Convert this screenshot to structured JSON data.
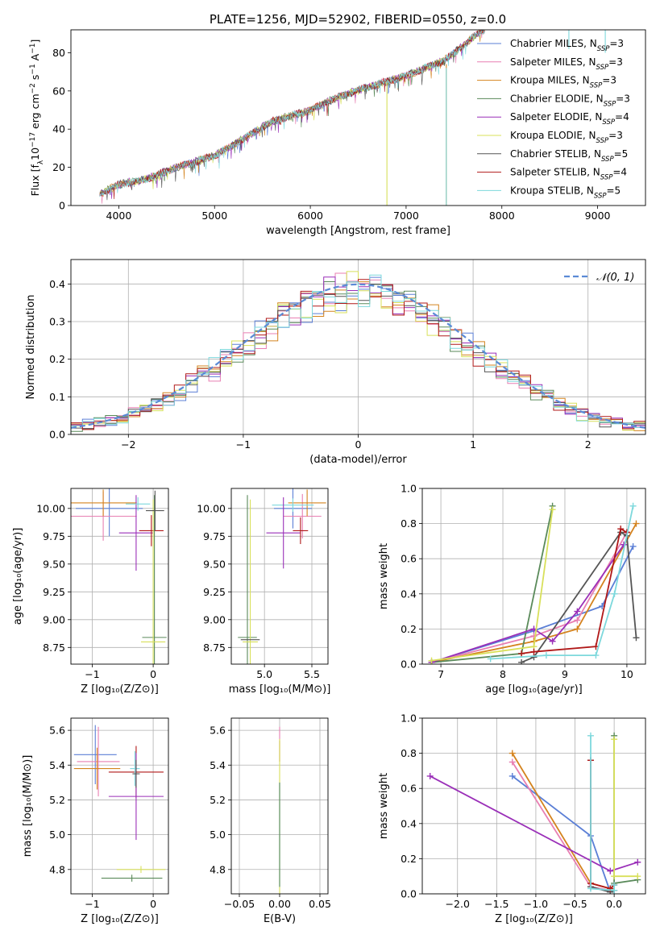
{
  "figure": {
    "suptitle": "PLATE=1256, MJD=52902, FIBERID=0550, z=0.0",
    "series_names": [
      "Chabrier MILES",
      "Salpeter MILES",
      "Kroupa MILES",
      "Chabrier ELODIE",
      "Salpeter ELODIE",
      "Kroupa ELODIE",
      "Chabrier STELIB",
      "Salpeter STELIB",
      "Kroupa STELIB"
    ],
    "series_nssp": [
      3,
      3,
      3,
      3,
      4,
      3,
      5,
      4,
      5
    ],
    "nssp_label": "N",
    "nssp_sub": "SSP",
    "series_colors": [
      "#5b7fd6",
      "#e87fb2",
      "#d4831e",
      "#5a8a5a",
      "#9a2fb8",
      "#d8e05a",
      "#555555",
      "#b01818",
      "#7dd8dc"
    ]
  },
  "chart_data": [
    {
      "id": "spectrum",
      "type": "line",
      "title": "PLATE=1256, MJD=52902, FIBERID=0550, z=0.0",
      "xlabel": "wavelength [Angstrom, rest frame]",
      "ylabel": "Flux [f_λ 10^-17 erg cm^-2 s^-1 A^-1]",
      "xlim": [
        3500,
        9500
      ],
      "ylim": [
        0,
        92
      ],
      "xticks": [
        4000,
        5000,
        6000,
        7000,
        8000,
        9000
      ],
      "yticks": [
        0,
        20,
        40,
        60,
        80
      ],
      "legend": "upper right",
      "spectrum_x": [
        3800,
        4000,
        4300,
        4600,
        5000,
        5300,
        5600,
        6000,
        6300,
        6600,
        7000,
        7400,
        7800
      ],
      "spectrum_y": [
        6,
        11,
        14,
        20,
        26,
        35,
        44,
        50,
        57,
        62,
        68,
        76,
        92
      ],
      "spikes": [
        {
          "series": 5,
          "x": 6800,
          "ymin": 0,
          "ymax": 64
        },
        {
          "series": 2,
          "x": 7420,
          "ymin": 0,
          "ymax": 74
        },
        {
          "series": 8,
          "x": 7420,
          "ymin": 0,
          "ymax": 72
        },
        {
          "series": 8,
          "x": 8700,
          "ymin": 82,
          "ymax": 92
        },
        {
          "series": 8,
          "x": 9080,
          "ymin": 80,
          "ymax": 92
        }
      ]
    },
    {
      "id": "residuals",
      "type": "line",
      "xlabel": "(data-model)/error",
      "ylabel": "Normed distribution",
      "xlim": [
        -2.5,
        2.5
      ],
      "ylim": [
        0,
        0.465
      ],
      "xticks": [
        -2,
        -1,
        0,
        1,
        2
      ],
      "yticks": [
        0.0,
        0.1,
        0.2,
        0.3,
        0.4
      ],
      "bin_width": 0.1,
      "gaussian_label": "𝒩(0, 1)",
      "legend": "upper right"
    },
    {
      "id": "age-vs-Z",
      "type": "scatter",
      "xlabel": "Z [log₁₀(Z/Z⊙)]",
      "ylabel": "age  [log₁₀(age/yr)]",
      "xlim": [
        -1.35,
        0.25
      ],
      "ylim": [
        8.6,
        10.18
      ],
      "xticks": [
        -1,
        0
      ],
      "yticks": [
        8.75,
        9.0,
        9.25,
        9.5,
        9.75,
        10.0
      ],
      "errorbars": [
        {
          "s": 0,
          "x": -0.72,
          "y": 10.0,
          "xerr": 0.55,
          "yerr": 0.25
        },
        {
          "s": 1,
          "x": -0.82,
          "y": 9.93,
          "xerr": 0.55,
          "yerr": 0.22
        },
        {
          "s": 2,
          "x": -0.82,
          "y": 10.05,
          "xerr": 0.55,
          "yerr": 0.12
        },
        {
          "s": 4,
          "x": -0.28,
          "y": 9.78,
          "xerr": 0.28,
          "yerr": 0.34
        },
        {
          "s": 7,
          "x": -0.03,
          "y": 9.8,
          "xerr": 0.2,
          "yerr": 0.14
        },
        {
          "s": 8,
          "x": -0.25,
          "y": 10.04,
          "xerr": 0.2,
          "yerr": 0.06
        },
        {
          "s": 3,
          "x": 0.02,
          "y": 8.84,
          "xerr": 0.2,
          "yerr": 1.28
        },
        {
          "s": 5,
          "x": 0.0,
          "y": 8.8,
          "xerr": 0.2,
          "yerr": 1.28
        },
        {
          "s": 6,
          "x": 0.03,
          "y": 9.98,
          "xerr": 0.15,
          "yerr": 0.18
        }
      ]
    },
    {
      "id": "age-vs-mass",
      "type": "scatter",
      "xlabel": "mass [log₁₀(M/M⊙)]",
      "ylabel": "",
      "xlim": [
        4.65,
        5.67
      ],
      "ylim": [
        8.6,
        10.18
      ],
      "xticks": [
        5.0,
        5.5
      ],
      "yticks": [
        8.75,
        9.0,
        9.25,
        9.5,
        9.75,
        10.0
      ],
      "errorbars": [
        {
          "s": 0,
          "x": 5.3,
          "y": 10.0,
          "xerr": 0.2,
          "yerr": 0.18
        },
        {
          "s": 1,
          "x": 5.4,
          "y": 9.93,
          "xerr": 0.2,
          "yerr": 0.2
        },
        {
          "s": 2,
          "x": 5.45,
          "y": 10.05,
          "xerr": 0.2,
          "yerr": 0.12
        },
        {
          "s": 8,
          "x": 5.3,
          "y": 10.03,
          "xerr": 0.22,
          "yerr": 0.06
        },
        {
          "s": 4,
          "x": 5.2,
          "y": 9.78,
          "xerr": 0.18,
          "yerr": 0.32
        },
        {
          "s": 7,
          "x": 5.38,
          "y": 9.8,
          "xerr": 0.08,
          "yerr": 0.12
        },
        {
          "s": 3,
          "x": 4.82,
          "y": 8.84,
          "xerr": 0.1,
          "yerr": 1.28
        },
        {
          "s": 5,
          "x": 4.85,
          "y": 8.8,
          "xerr": 0.08,
          "yerr": 1.28
        },
        {
          "s": 6,
          "x": 4.85,
          "y": 8.82,
          "xerr": 0.1,
          "yerr": 0.0
        }
      ]
    },
    {
      "id": "weight-vs-age",
      "type": "line",
      "xlabel": "age  [log₁₀(age/yr)]",
      "ylabel": "mass weight",
      "xlim": [
        6.7,
        10.3
      ],
      "ylim": [
        0,
        1.0
      ],
      "xticks": [
        7,
        8,
        9,
        10
      ],
      "yticks": [
        0.0,
        0.2,
        0.4,
        0.6,
        0.8,
        1.0
      ],
      "series": [
        {
          "s": 0,
          "x": [
            6.85,
            8.5,
            9.6,
            10.1
          ],
          "y": [
            0.01,
            0.19,
            0.33,
            0.67
          ]
        },
        {
          "s": 1,
          "x": [
            6.85,
            8.5,
            9.2,
            10.0
          ],
          "y": [
            0.01,
            0.16,
            0.25,
            0.75
          ]
        },
        {
          "s": 2,
          "x": [
            6.85,
            8.5,
            9.2,
            10.15
          ],
          "y": [
            0.01,
            0.13,
            0.2,
            0.8
          ]
        },
        {
          "s": 3,
          "x": [
            6.85,
            8.3,
            8.8
          ],
          "y": [
            0.01,
            0.06,
            0.9
          ]
        },
        {
          "s": 4,
          "x": [
            6.85,
            8.5,
            8.8,
            9.2,
            9.95
          ],
          "y": [
            0.01,
            0.2,
            0.13,
            0.3,
            0.68
          ]
        },
        {
          "s": 5,
          "x": [
            6.85,
            8.5,
            8.8
          ],
          "y": [
            0.02,
            0.1,
            0.88
          ]
        },
        {
          "s": 6,
          "x": [
            8.3,
            8.5,
            9.9,
            10.0,
            10.15
          ],
          "y": [
            0.01,
            0.04,
            0.75,
            0.73,
            0.15
          ]
        },
        {
          "s": 7,
          "x": [
            8.3,
            8.5,
            9.5,
            9.9,
            10.0
          ],
          "y": [
            0.06,
            0.07,
            0.1,
            0.77,
            0.75
          ]
        },
        {
          "s": 8,
          "x": [
            7.8,
            8.7,
            9.5,
            9.8,
            10.1
          ],
          "y": [
            0.03,
            0.05,
            0.05,
            0.4,
            0.9
          ]
        }
      ]
    },
    {
      "id": "mass-vs-Z",
      "type": "scatter",
      "xlabel": "Z [log₁₀(Z/Z⊙)]",
      "ylabel": "mass [log₁₀(M/M⊙)]",
      "xlim": [
        -1.35,
        0.25
      ],
      "ylim": [
        4.66,
        5.67
      ],
      "xticks": [
        -1,
        0
      ],
      "yticks": [
        4.8,
        5.0,
        5.2,
        5.4,
        5.6
      ],
      "errorbars": [
        {
          "s": 0,
          "x": -0.95,
          "y": 5.46,
          "xerr": 0.35,
          "yerr": 0.17
        },
        {
          "s": 1,
          "x": -0.9,
          "y": 5.42,
          "xerr": 0.35,
          "yerr": 0.2
        },
        {
          "s": 2,
          "x": -0.92,
          "y": 5.38,
          "xerr": 0.38,
          "yerr": 0.12
        },
        {
          "s": 7,
          "x": -0.28,
          "y": 5.36,
          "xerr": 0.45,
          "yerr": 0.15
        },
        {
          "s": 8,
          "x": -0.3,
          "y": 5.38,
          "xerr": 0.08,
          "yerr": 0.1
        },
        {
          "s": 4,
          "x": -0.28,
          "y": 5.22,
          "xerr": 0.45,
          "yerr": 0.25
        },
        {
          "s": 6,
          "x": -0.28,
          "y": 5.35,
          "xerr": 0.06,
          "yerr": 0.08
        },
        {
          "s": 5,
          "x": -0.2,
          "y": 4.8,
          "xerr": 0.4,
          "yerr": 0.02
        },
        {
          "s": 3,
          "x": -0.35,
          "y": 4.75,
          "xerr": 0.5,
          "yerr": 0.02
        }
      ]
    },
    {
      "id": "mass-vs-EBV",
      "type": "scatter",
      "xlabel": "E(B-V)",
      "ylabel": "",
      "xlim": [
        -0.06,
        0.06
      ],
      "ylim": [
        4.66,
        5.67
      ],
      "xticks": [
        -0.05,
        0.0,
        0.05
      ],
      "yticks": [
        4.8,
        5.0,
        5.2,
        5.4,
        5.6
      ],
      "errorbars": [
        {
          "s": 1,
          "x": 0.0,
          "y": 5.52,
          "xerr": 0.0,
          "yerr": 0.1
        },
        {
          "s": 7,
          "x": 0.0,
          "y": 5.48,
          "xerr": 0.0,
          "yerr": 0.06
        },
        {
          "s": 8,
          "x": 0.0,
          "y": 5.0,
          "xerr": 0.0,
          "yerr": 0.3
        },
        {
          "s": 5,
          "x": 0.0,
          "y": 5.1,
          "xerr": 0.0,
          "yerr": 0.45
        },
        {
          "s": 3,
          "x": 0.0,
          "y": 5.0,
          "xerr": 0.0,
          "yerr": 0.3
        }
      ]
    },
    {
      "id": "weight-vs-Z",
      "type": "line",
      "xlabel": "Z [log₁₀(Z/Z⊙)]",
      "ylabel": "mass weight",
      "xlim": [
        -2.45,
        0.4
      ],
      "ylim": [
        0,
        1.0
      ],
      "xticks": [
        -2.0,
        -1.5,
        -1.0,
        -0.5,
        0.0
      ],
      "yticks": [
        0.0,
        0.2,
        0.4,
        0.6,
        0.8,
        1.0
      ],
      "series": [
        {
          "s": 0,
          "x": [
            -1.3,
            -0.3,
            -0.05
          ],
          "y": [
            0.67,
            0.33,
            0.01
          ]
        },
        {
          "s": 1,
          "x": [
            -1.3,
            -0.3,
            -0.05
          ],
          "y": [
            0.75,
            0.04,
            0.02
          ]
        },
        {
          "s": 2,
          "x": [
            -1.3,
            -0.3,
            -0.05
          ],
          "y": [
            0.8,
            0.06,
            0.03
          ]
        },
        {
          "s": 3,
          "x": [
            0.0,
            0.0,
            0.3
          ],
          "y": [
            0.9,
            0.06,
            0.08
          ]
        },
        {
          "s": 4,
          "x": [
            -2.35,
            -0.05,
            0.3
          ],
          "y": [
            0.67,
            0.13,
            0.18
          ]
        },
        {
          "s": 5,
          "x": [
            0.0,
            0.0,
            0.3
          ],
          "y": [
            0.88,
            0.1,
            0.1
          ]
        },
        {
          "s": 6,
          "x": [
            -0.3,
            -0.3,
            -0.05,
            0.0
          ],
          "y": [
            0.76,
            0.04,
            0.01,
            0.02
          ]
        },
        {
          "s": 7,
          "x": [
            -0.3,
            -0.3,
            -0.05,
            0.0
          ],
          "y": [
            0.76,
            0.06,
            0.03,
            0.05
          ]
        },
        {
          "s": 8,
          "x": [
            -0.3,
            -0.3,
            0.0,
            0.0
          ],
          "y": [
            0.9,
            0.03,
            0.02,
            0.05
          ]
        }
      ]
    }
  ]
}
